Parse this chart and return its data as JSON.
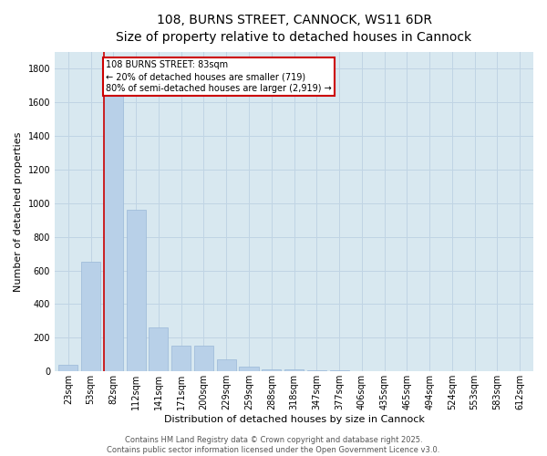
{
  "title_line1": "108, BURNS STREET, CANNOCK, WS11 6DR",
  "title_line2": "Size of property relative to detached houses in Cannock",
  "xlabel": "Distribution of detached houses by size in Cannock",
  "ylabel": "Number of detached properties",
  "categories": [
    "23sqm",
    "53sqm",
    "82sqm",
    "112sqm",
    "141sqm",
    "171sqm",
    "200sqm",
    "229sqm",
    "259sqm",
    "288sqm",
    "318sqm",
    "347sqm",
    "377sqm",
    "406sqm",
    "435sqm",
    "465sqm",
    "494sqm",
    "524sqm",
    "553sqm",
    "583sqm",
    "612sqm"
  ],
  "values": [
    40,
    650,
    1690,
    960,
    260,
    155,
    155,
    70,
    30,
    15,
    10,
    5,
    5,
    2,
    0,
    0,
    0,
    0,
    0,
    0,
    0
  ],
  "bar_color": "#b8d0e8",
  "bar_edge_color": "#9ab8d8",
  "grid_color": "#c0d4e4",
  "background_color": "#d8e8f0",
  "annotation_text": "108 BURNS STREET: 83sqm\n← 20% of detached houses are smaller (719)\n80% of semi-detached houses are larger (2,919) →",
  "annotation_box_color": "white",
  "annotation_box_edgecolor": "#cc0000",
  "vline_color": "#cc0000",
  "vline_x_index": 2,
  "ylim": [
    0,
    1900
  ],
  "yticks": [
    0,
    200,
    400,
    600,
    800,
    1000,
    1200,
    1400,
    1600,
    1800
  ],
  "footer_text": "Contains HM Land Registry data © Crown copyright and database right 2025.\nContains public sector information licensed under the Open Government Licence v3.0.",
  "title_fontsize": 10,
  "subtitle_fontsize": 9,
  "axis_label_fontsize": 8,
  "tick_fontsize": 7,
  "annotation_fontsize": 7,
  "footer_fontsize": 6
}
